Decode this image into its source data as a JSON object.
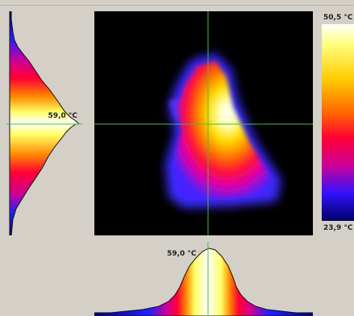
{
  "vertical_profile": {
    "temperature_label": "59,0 °C"
  },
  "horizontal_profile": {
    "temperature_label": "59,0 °C"
  },
  "color_scale": {
    "max_label": "50,5 °C",
    "min_label": "23,9 °C"
  },
  "colors": {
    "background": "#d4d0c8",
    "image_background": "#000000",
    "crosshair": "#3fbf3f",
    "profile_outline": "#111111"
  }
}
